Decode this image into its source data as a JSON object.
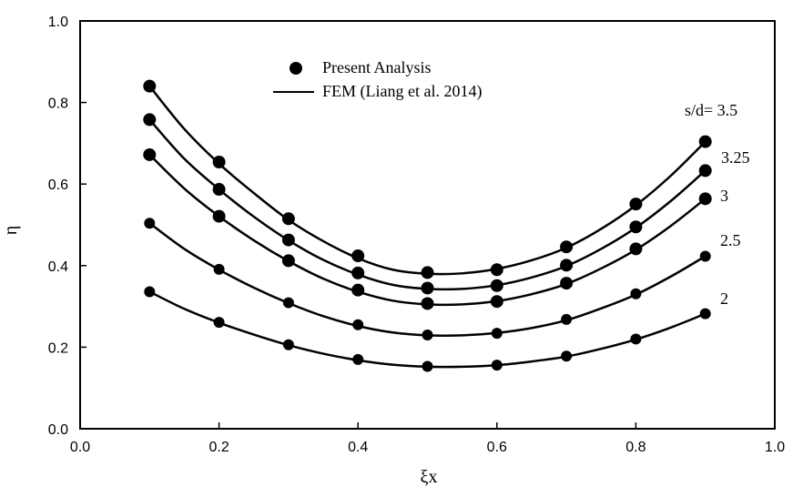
{
  "chart_data": {
    "type": "line",
    "xlabel": "ξx",
    "ylabel": "η",
    "xlim": [
      0.0,
      1.0
    ],
    "ylim": [
      0.0,
      1.0
    ],
    "x_ticks": [
      "0.0",
      "0.2",
      "0.4",
      "0.6",
      "0.8",
      "1.0"
    ],
    "y_ticks": [
      "0.0",
      "0.2",
      "0.4",
      "0.6",
      "0.8",
      "1.0"
    ],
    "legend": {
      "placement": "top-center",
      "markers_label": "Present Analysis",
      "line_label": "FEM (Liang et al. 2014)"
    },
    "grid": false,
    "series": [
      {
        "name": "s/d= 3.5",
        "x": [
          0.1,
          0.2,
          0.3,
          0.4,
          0.5,
          0.6,
          0.7,
          0.8,
          0.9
        ],
        "points": [
          0.84,
          0.654,
          0.515,
          0.424,
          0.383,
          0.39,
          0.446,
          0.551,
          0.704
        ],
        "curve_x": [
          0.1,
          0.15,
          0.2,
          0.25,
          0.3,
          0.35,
          0.4,
          0.45,
          0.5,
          0.55,
          0.6,
          0.65,
          0.7,
          0.75,
          0.8,
          0.85,
          0.9
        ],
        "curve_y": [
          0.84,
          0.735,
          0.65,
          0.578,
          0.512,
          0.46,
          0.418,
          0.39,
          0.38,
          0.381,
          0.392,
          0.413,
          0.444,
          0.49,
          0.548,
          0.62,
          0.704
        ]
      },
      {
        "name": "3.25",
        "x": [
          0.1,
          0.2,
          0.3,
          0.4,
          0.5,
          0.6,
          0.7,
          0.8,
          0.9
        ],
        "points": [
          0.758,
          0.587,
          0.463,
          0.382,
          0.345,
          0.351,
          0.401,
          0.495,
          0.633
        ],
        "curve_x": [
          0.1,
          0.15,
          0.2,
          0.25,
          0.3,
          0.35,
          0.4,
          0.45,
          0.5,
          0.55,
          0.6,
          0.65,
          0.7,
          0.75,
          0.8,
          0.85,
          0.9
        ],
        "curve_y": [
          0.758,
          0.662,
          0.587,
          0.52,
          0.462,
          0.414,
          0.378,
          0.353,
          0.343,
          0.343,
          0.352,
          0.371,
          0.399,
          0.441,
          0.493,
          0.558,
          0.633
        ]
      },
      {
        "name": "3",
        "x": [
          0.1,
          0.2,
          0.3,
          0.4,
          0.5,
          0.6,
          0.7,
          0.8,
          0.9
        ],
        "points": [
          0.672,
          0.521,
          0.412,
          0.34,
          0.307,
          0.312,
          0.357,
          0.441,
          0.564
        ],
        "curve_x": [
          0.1,
          0.15,
          0.2,
          0.25,
          0.3,
          0.35,
          0.4,
          0.45,
          0.5,
          0.55,
          0.6,
          0.65,
          0.7,
          0.75,
          0.8,
          0.85,
          0.9
        ],
        "curve_y": [
          0.672,
          0.589,
          0.521,
          0.462,
          0.411,
          0.368,
          0.336,
          0.314,
          0.305,
          0.305,
          0.313,
          0.33,
          0.355,
          0.393,
          0.439,
          0.497,
          0.564
        ]
      },
      {
        "name": "2.5",
        "x": [
          0.1,
          0.2,
          0.3,
          0.4,
          0.5,
          0.6,
          0.7,
          0.8,
          0.9
        ],
        "points": [
          0.504,
          0.391,
          0.309,
          0.255,
          0.23,
          0.234,
          0.268,
          0.331,
          0.423
        ],
        "curve_x": [
          0.1,
          0.15,
          0.2,
          0.25,
          0.3,
          0.35,
          0.4,
          0.45,
          0.5,
          0.55,
          0.6,
          0.65,
          0.7,
          0.75,
          0.8,
          0.85,
          0.9
        ],
        "curve_y": [
          0.504,
          0.441,
          0.39,
          0.346,
          0.308,
          0.276,
          0.252,
          0.236,
          0.229,
          0.229,
          0.235,
          0.247,
          0.266,
          0.295,
          0.329,
          0.373,
          0.423
        ]
      },
      {
        "name": "2",
        "x": [
          0.1,
          0.2,
          0.3,
          0.4,
          0.5,
          0.6,
          0.7,
          0.8,
          0.9
        ],
        "points": [
          0.336,
          0.261,
          0.206,
          0.17,
          0.153,
          0.156,
          0.178,
          0.22,
          0.282
        ],
        "curve_x": [
          0.1,
          0.15,
          0.2,
          0.25,
          0.3,
          0.35,
          0.4,
          0.45,
          0.5,
          0.55,
          0.6,
          0.65,
          0.7,
          0.75,
          0.8,
          0.85,
          0.9
        ],
        "curve_y": [
          0.336,
          0.294,
          0.26,
          0.231,
          0.205,
          0.184,
          0.168,
          0.157,
          0.152,
          0.152,
          0.156,
          0.165,
          0.177,
          0.196,
          0.219,
          0.248,
          0.282
        ]
      }
    ]
  }
}
